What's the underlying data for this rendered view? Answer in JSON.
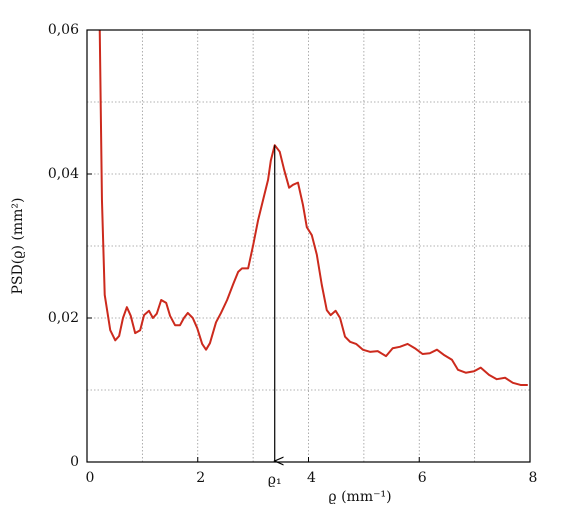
{
  "chart_data": {
    "type": "line",
    "x_label": "ϱ (mm⁻¹)",
    "y_label": "PSD(ϱ) (mm²)",
    "xlim": [
      0,
      8
    ],
    "ylim": [
      0,
      0.06
    ],
    "xticks": [
      0,
      2,
      4,
      6,
      8
    ],
    "yticks": [
      0,
      {
        "value": 0.02,
        "label": "0,02"
      },
      {
        "value": 0.04,
        "label": "0,04"
      },
      {
        "value": 0.06,
        "label": "0,06"
      }
    ],
    "xgrid": [
      1,
      2,
      3,
      4,
      5,
      6,
      7
    ],
    "ygrid": [
      0.01,
      0.02,
      0.03,
      0.04,
      0.05
    ],
    "grid": true,
    "x": [
      0.23,
      0.27,
      0.32,
      0.42,
      0.51,
      0.58,
      0.65,
      0.72,
      0.79,
      0.87,
      0.96,
      1.03,
      1.12,
      1.19,
      1.26,
      1.34,
      1.43,
      1.5,
      1.59,
      1.68,
      1.75,
      1.82,
      1.91,
      1.99,
      2.08,
      2.15,
      2.22,
      2.33,
      2.42,
      2.53,
      2.64,
      2.73,
      2.8,
      2.91,
      3.0,
      3.09,
      3.18,
      3.27,
      3.32,
      3.39,
      3.48,
      3.56,
      3.65,
      3.72,
      3.81,
      3.9,
      3.97,
      4.06,
      4.15,
      4.24,
      4.33,
      4.4,
      4.49,
      4.57,
      4.66,
      4.75,
      4.86,
      4.98,
      5.11,
      5.25,
      5.4,
      5.52,
      5.65,
      5.79,
      5.92,
      6.06,
      6.19,
      6.32,
      6.44,
      6.59,
      6.7,
      6.84,
      6.99,
      7.11,
      7.26,
      7.4,
      7.55,
      7.69,
      7.83,
      7.96
    ],
    "series": [
      {
        "color": "#cc2a1d",
        "values": [
          0.06,
          0.0364,
          0.0232,
          0.0183,
          0.0169,
          0.0175,
          0.02,
          0.0215,
          0.0203,
          0.0179,
          0.0183,
          0.0204,
          0.021,
          0.02,
          0.0206,
          0.0225,
          0.0221,
          0.0203,
          0.019,
          0.019,
          0.02,
          0.0207,
          0.02,
          0.0186,
          0.0164,
          0.0156,
          0.0165,
          0.0194,
          0.0207,
          0.0225,
          0.0247,
          0.0264,
          0.0269,
          0.0269,
          0.0301,
          0.0336,
          0.0364,
          0.0392,
          0.0419,
          0.044,
          0.0431,
          0.0406,
          0.0381,
          0.0385,
          0.0388,
          0.0357,
          0.0326,
          0.0315,
          0.0288,
          0.0246,
          0.0211,
          0.0204,
          0.021,
          0.02,
          0.0174,
          0.0167,
          0.0164,
          0.0156,
          0.0153,
          0.0154,
          0.0147,
          0.0158,
          0.016,
          0.0164,
          0.0158,
          0.015,
          0.0151,
          0.0156,
          0.0149,
          0.0142,
          0.0128,
          0.0124,
          0.0126,
          0.0131,
          0.0121,
          0.0115,
          0.0117,
          0.011,
          0.0107,
          0.0107
        ]
      }
    ],
    "annotations": [
      {
        "text": "ϱ₁",
        "x": 3.39,
        "y": 0.044
      }
    ]
  }
}
